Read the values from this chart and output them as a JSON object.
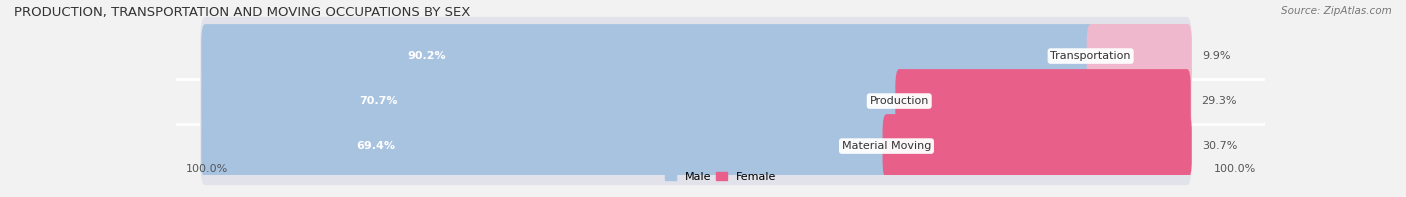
{
  "title": "PRODUCTION, TRANSPORTATION AND MOVING OCCUPATIONS BY SEX",
  "source": "Source: ZipAtlas.com",
  "categories": [
    "Transportation",
    "Production",
    "Material Moving"
  ],
  "male_pct": [
    90.2,
    70.7,
    69.4
  ],
  "female_pct": [
    9.9,
    29.3,
    30.7
  ],
  "male_color": "#a8c3e0",
  "female_colors": [
    "#f0b8cc",
    "#e8608a",
    "#e8608a"
  ],
  "male_legend_color": "#a8c3e0",
  "female_legend_color": "#e8608a",
  "bg_color": "#f2f2f2",
  "bar_bg_color": "#e2e2ea",
  "title_fontsize": 9.5,
  "source_fontsize": 7.5,
  "pct_fontsize": 8,
  "cat_fontsize": 8,
  "axis_label_fontsize": 8,
  "x_left_label": "100.0%",
  "x_right_label": "100.0%"
}
